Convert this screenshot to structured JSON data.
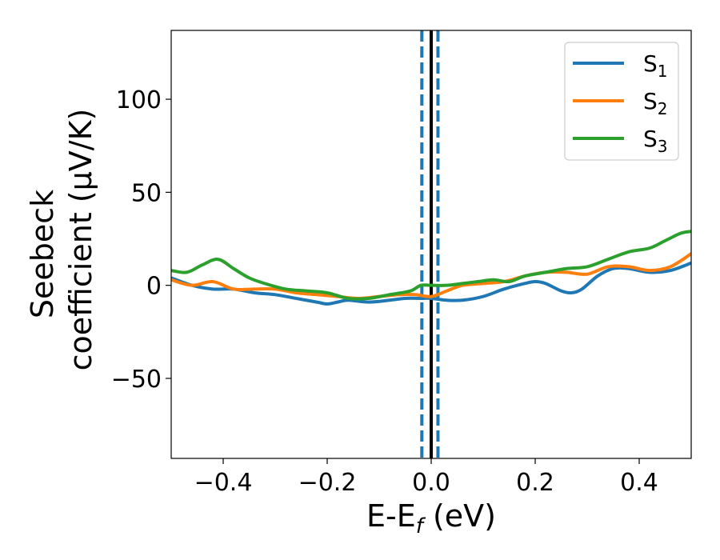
{
  "chart_data": {
    "type": "line",
    "title": "",
    "xlabel": {
      "main": "E-E",
      "sub": "f",
      "unit": " (eV)"
    },
    "ylabel": {
      "line1": "Seebeck",
      "line2": "coefficient  (μV/K)"
    },
    "xlim": [
      -0.5,
      0.5
    ],
    "ylim": [
      -93,
      137
    ],
    "xticks": [
      -0.4,
      -0.2,
      0.0,
      0.2,
      0.4
    ],
    "xtick_labels": [
      "−0.4",
      "−0.2",
      "0.0",
      "0.2",
      "0.4"
    ],
    "yticks": [
      -50,
      0,
      50,
      100
    ],
    "ytick_labels": [
      "−50",
      "0",
      "50",
      "100"
    ],
    "grid": false,
    "legend_position": "top-right",
    "vlines": [
      {
        "x": -0.018,
        "style": "dashed",
        "color": "#1f77b4"
      },
      {
        "x": 0.0,
        "style": "solid",
        "color": "#000000"
      },
      {
        "x": 0.013,
        "style": "dashed",
        "color": "#1f77b4"
      }
    ],
    "series": [
      {
        "name": "S",
        "sub": "1",
        "color": "#1f77b4",
        "x": [
          -0.5,
          -0.46,
          -0.42,
          -0.38,
          -0.34,
          -0.3,
          -0.26,
          -0.22,
          -0.2,
          -0.18,
          -0.16,
          -0.12,
          -0.08,
          -0.05,
          -0.02,
          0.0,
          0.03,
          0.06,
          0.1,
          0.14,
          0.18,
          0.2,
          0.22,
          0.25,
          0.27,
          0.29,
          0.32,
          0.35,
          0.38,
          0.42,
          0.46,
          0.5
        ],
        "y": [
          4,
          0,
          -2,
          -2,
          -4,
          -5,
          -7,
          -9,
          -10,
          -9,
          -8,
          -9,
          -8,
          -7,
          -7,
          -7,
          -8,
          -8,
          -6,
          -2,
          1,
          2,
          1,
          -3,
          -4,
          -2,
          5,
          9,
          9,
          7,
          8,
          12
        ]
      },
      {
        "name": "S",
        "sub": "2",
        "color": "#ff7f0e",
        "x": [
          -0.5,
          -0.46,
          -0.42,
          -0.38,
          -0.34,
          -0.3,
          -0.26,
          -0.22,
          -0.18,
          -0.14,
          -0.1,
          -0.06,
          -0.03,
          0.0,
          0.03,
          0.06,
          0.1,
          0.14,
          0.18,
          0.22,
          0.26,
          0.3,
          0.34,
          0.38,
          0.42,
          0.46,
          0.5
        ],
        "y": [
          3,
          0,
          2,
          -2,
          -2,
          -2,
          -4,
          -5,
          -6,
          -7,
          -6,
          -5,
          -5,
          -6,
          -3,
          0,
          1,
          2,
          5,
          7,
          7,
          6,
          10,
          10,
          8,
          10,
          17
        ]
      },
      {
        "name": "S",
        "sub": "3",
        "color": "#2ca02c",
        "x": [
          -0.5,
          -0.47,
          -0.44,
          -0.41,
          -0.38,
          -0.35,
          -0.32,
          -0.28,
          -0.24,
          -0.2,
          -0.16,
          -0.12,
          -0.08,
          -0.04,
          -0.02,
          0.0,
          0.03,
          0.06,
          0.09,
          0.12,
          0.15,
          0.18,
          0.22,
          0.26,
          0.3,
          0.34,
          0.38,
          0.42,
          0.45,
          0.48,
          0.5
        ],
        "y": [
          8,
          7,
          11,
          14,
          9,
          4,
          1,
          -2,
          -3,
          -4,
          -7,
          -7,
          -5,
          -3,
          0,
          0,
          0,
          1,
          2,
          3,
          2,
          5,
          7,
          9,
          10,
          14,
          18,
          20,
          24,
          28,
          29
        ]
      }
    ]
  }
}
